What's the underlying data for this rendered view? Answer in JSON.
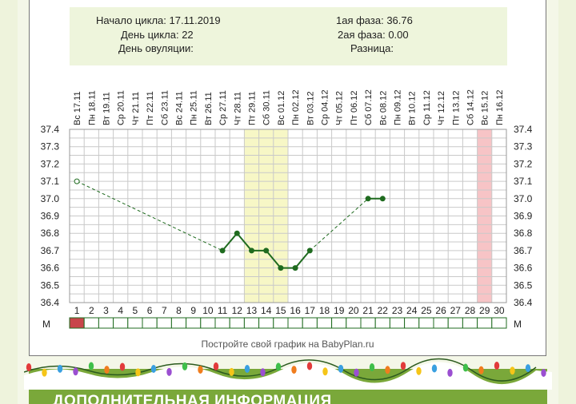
{
  "info": {
    "cycle_start_label": "Начало цикла:",
    "cycle_start_value": "17.11.2019",
    "cycle_day_label": "День цикла:",
    "cycle_day_value": "22",
    "ovulation_label": "День овуляции:",
    "ovulation_value": "",
    "phase1_label": "1ая фаза:",
    "phase1_value": "36.76",
    "phase2_label": "2ая фаза:",
    "phase2_value": "0.00",
    "diff_label": "Разница:",
    "diff_value": ""
  },
  "footer": "Постройте свой график на BabyPlan.ru",
  "banner_caption": "ДОПОЛНИТЕЛЬНАЯ ИНФОРМАЦИЯ",
  "row_label": "М",
  "colors": {
    "line": "#1f6b1f",
    "highlight_yellow": "#f7f7c6",
    "highlight_pink": "#f7c4c6",
    "menses": "#c8454a",
    "grid": "#c9c9c9",
    "banner": "#7aa83a"
  },
  "chart_data": {
    "type": "line",
    "x": [
      1,
      2,
      3,
      4,
      5,
      6,
      7,
      8,
      9,
      10,
      11,
      12,
      13,
      14,
      15,
      16,
      17,
      18,
      19,
      20,
      21,
      22,
      23,
      24,
      25,
      26,
      27,
      28,
      29,
      30
    ],
    "dates": [
      "Вс 17.11",
      "Пн 18.11",
      "Вт 19.11",
      "Ср 20.11",
      "Чт 21.11",
      "Пт 22.11",
      "Сб 23.11",
      "Вс 24.11",
      "Пн 25.11",
      "Вт 26.11",
      "Ср 27.11",
      "Чт 28.11",
      "Пт 29.11",
      "Сб 30.11",
      "Вс 01.12",
      "Пн 02.12",
      "Вт 03.12",
      "Ср 04.12",
      "Чт 05.12",
      "Пт 06.12",
      "Сб 07.12",
      "Вс 08.12",
      "Пн 09.12",
      "Вт 10.12",
      "Ср 11.12",
      "Чт 12.12",
      "Пт 13.12",
      "Сб 14.12",
      "Вс 15.12",
      "Пн 16.12"
    ],
    "yticks": [
      "37.4",
      "37.3",
      "37.2",
      "37.1",
      "37.0",
      "36.9",
      "36.8",
      "36.7",
      "36.6",
      "36.5",
      "36.4"
    ],
    "ylim": [
      36.4,
      37.4
    ],
    "points": [
      {
        "day": 1,
        "temp": 37.1,
        "hollow": true
      },
      {
        "day": 11,
        "temp": 36.7
      },
      {
        "day": 12,
        "temp": 36.8
      },
      {
        "day": 13,
        "temp": 36.7
      },
      {
        "day": 14,
        "temp": 36.7
      },
      {
        "day": 15,
        "temp": 36.6
      },
      {
        "day": 16,
        "temp": 36.6
      },
      {
        "day": 17,
        "temp": 36.7
      },
      {
        "day": 21,
        "temp": 37.0
      },
      {
        "day": 22,
        "temp": 37.0
      }
    ],
    "dashed_segments": [
      [
        1,
        11
      ],
      [
        17,
        21
      ]
    ],
    "solid_segments": [
      [
        11,
        17
      ],
      [
        21,
        22
      ]
    ],
    "highlight_days_yellow": [
      13,
      14,
      15
    ],
    "highlight_days_pink": [
      29
    ],
    "menses_days": [
      1
    ],
    "grid": true
  }
}
